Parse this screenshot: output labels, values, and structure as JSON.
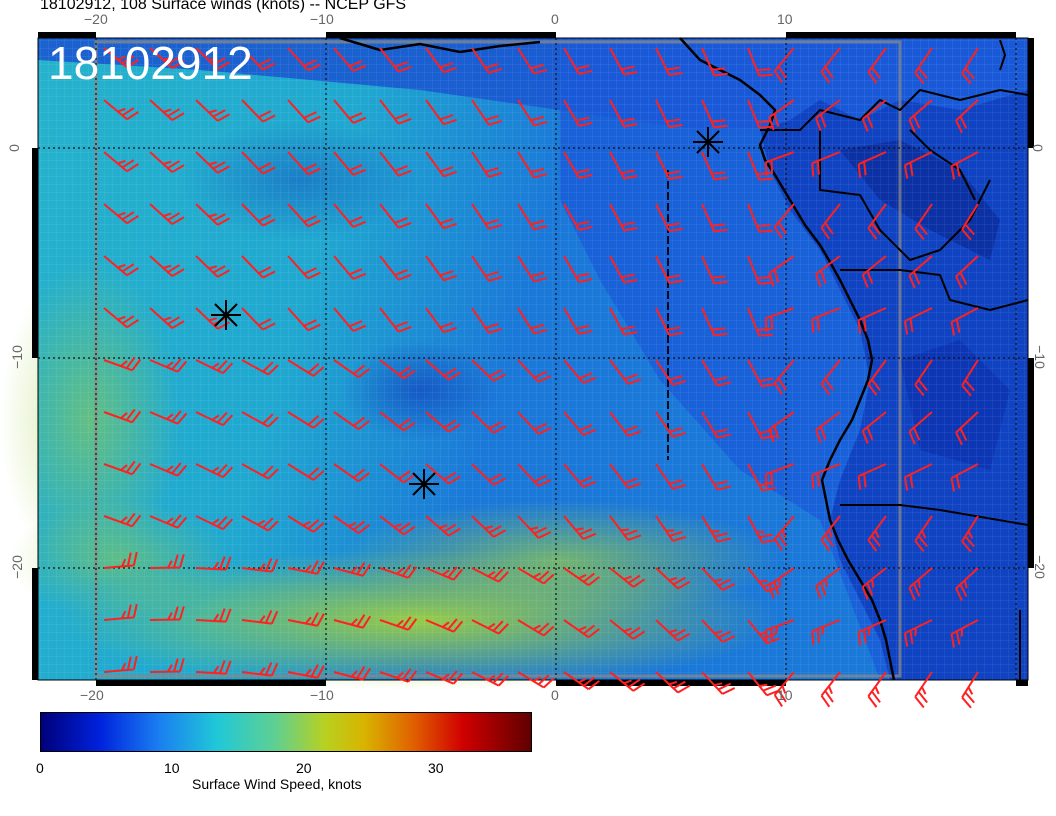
{
  "header": {
    "title": "18102912, 108 Surface winds (knots) -- NCEP GFS"
  },
  "map": {
    "timestamp_label": "18102912",
    "x_ticks_top": [
      "−20",
      "−10",
      "0",
      "10"
    ],
    "x_ticks_bottom": [
      "−20",
      "−10",
      "0",
      "10"
    ],
    "y_ticks_left": [
      "0",
      "−10",
      "−20"
    ],
    "y_ticks_right": [
      "0",
      "−10",
      "−20"
    ],
    "colors": {
      "barb": "#ff2020",
      "coast": "#000000",
      "ocean_low": "#1a3fc8",
      "ocean_mid": "#1aa8c8",
      "ocean_high": "#7ec850"
    },
    "markers": [
      "asterisk",
      "asterisk",
      "asterisk"
    ]
  },
  "colorbar": {
    "title": "Surface Wind Speed, knots",
    "ticks": [
      "0",
      "10",
      "20",
      "30"
    ],
    "range": [
      0,
      37
    ]
  }
}
